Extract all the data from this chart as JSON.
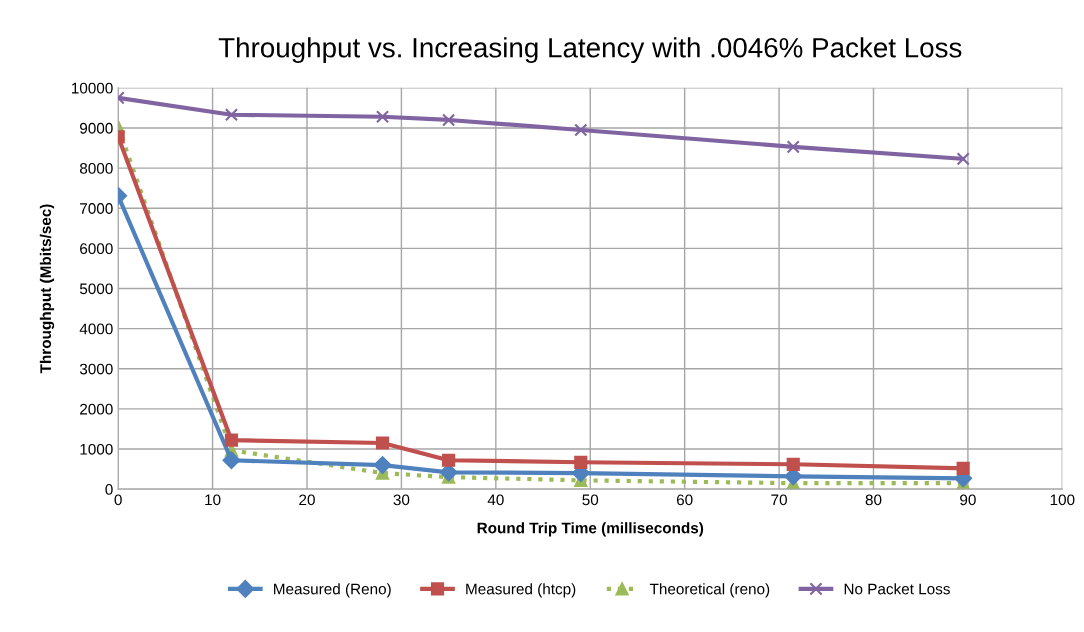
{
  "chart_data": {
    "type": "line",
    "title": "Throughput vs. Increasing Latency with .0046% Packet Loss",
    "xlabel": "Round Trip Time (milliseconds)",
    "ylabel": "Throughput (Mbits/sec)",
    "x": [
      0,
      12,
      28,
      35,
      49,
      71.5,
      89.5
    ],
    "series": [
      {
        "name": "Measured (Reno)",
        "color": "#4f81bd",
        "marker": "diamond",
        "line_style": "solid",
        "values": [
          7310,
          720,
          600,
          420,
          400,
          320,
          270
        ]
      },
      {
        "name": "Measured (htcp)",
        "color": "#c0504d",
        "marker": "square",
        "line_style": "solid",
        "values": [
          8780,
          1220,
          1150,
          720,
          670,
          620,
          520
        ]
      },
      {
        "name": "Theoretical (reno)",
        "color": "#9bbb59",
        "marker": "triangle",
        "line_style": "dotted",
        "values": [
          9030,
          970,
          400,
          300,
          220,
          150,
          150
        ]
      },
      {
        "name": "No Packet Loss",
        "color": "#8064a2",
        "marker": "cross",
        "line_style": "solid",
        "values": [
          9750,
          9330,
          9280,
          9200,
          8950,
          8530,
          8230
        ]
      }
    ],
    "xlim": [
      0,
      100
    ],
    "xticks": [
      0,
      10,
      20,
      30,
      40,
      50,
      60,
      70,
      80,
      90,
      100
    ],
    "ylim": [
      0,
      10000
    ],
    "yticks": [
      0,
      1000,
      2000,
      3000,
      4000,
      5000,
      6000,
      7000,
      8000,
      9000,
      10000
    ],
    "grid": true,
    "legend": "bottom"
  }
}
